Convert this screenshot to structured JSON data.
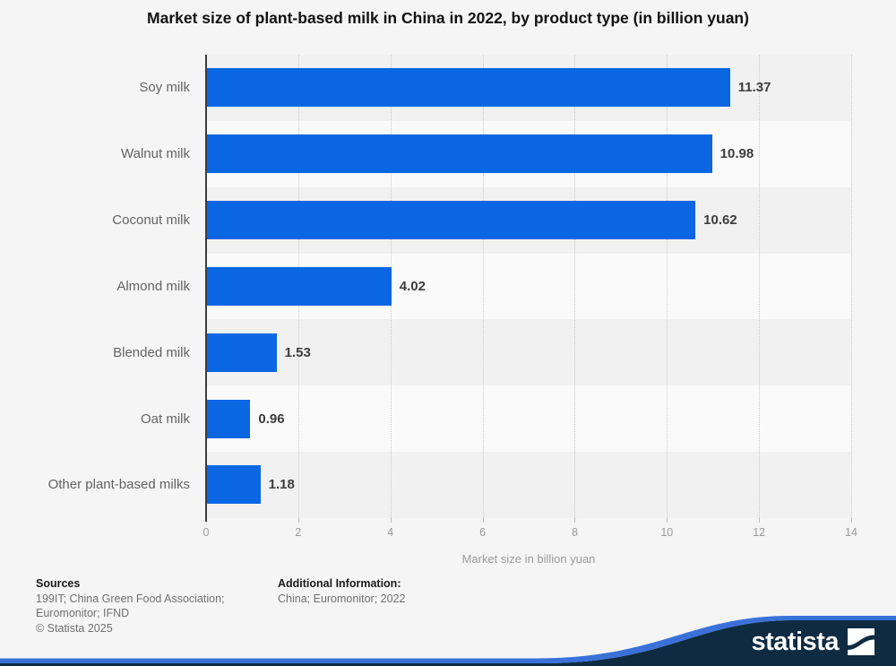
{
  "title": "Market size of plant-based milk in China in 2022, by product type (in billion yuan)",
  "chart_data": {
    "type": "bar",
    "orientation": "horizontal",
    "title": "Market size of plant-based milk in China in 2022, by product type (in billion yuan)",
    "categories": [
      "Soy milk",
      "Walnut milk",
      "Coconut milk",
      "Almond milk",
      "Blended milk",
      "Oat milk",
      "Other plant-based milks"
    ],
    "values": [
      11.37,
      10.98,
      10.62,
      4.02,
      1.53,
      0.96,
      1.18
    ],
    "value_labels": [
      "11.37",
      "10.98",
      "10.62",
      "4.02",
      "1.53",
      "0.96",
      "1.18"
    ],
    "xlabel": "Market size in billion yuan",
    "ylabel": "",
    "x_ticks": [
      0,
      2,
      4,
      6,
      8,
      10,
      12,
      14
    ],
    "xlim": [
      0,
      14
    ],
    "grid": "vertical-dotted",
    "legend": "none",
    "bar_color": "#0b66e2",
    "row_stripe_odd": "#f1f1f2",
    "row_stripe_even": "#fafafa"
  },
  "footer": {
    "sources_heading": "Sources",
    "sources_line1": "199IT; China Green Food Association;",
    "sources_line2": "Euromonitor; IFND",
    "copyright": "© Statista 2025",
    "additional_heading": "Additional Information:",
    "additional_line1": "China; Euromonitor; 2022"
  },
  "branding": {
    "wordmark": "statista",
    "banner_navy": "#0f2b41",
    "banner_blue": "#3a71d9"
  }
}
